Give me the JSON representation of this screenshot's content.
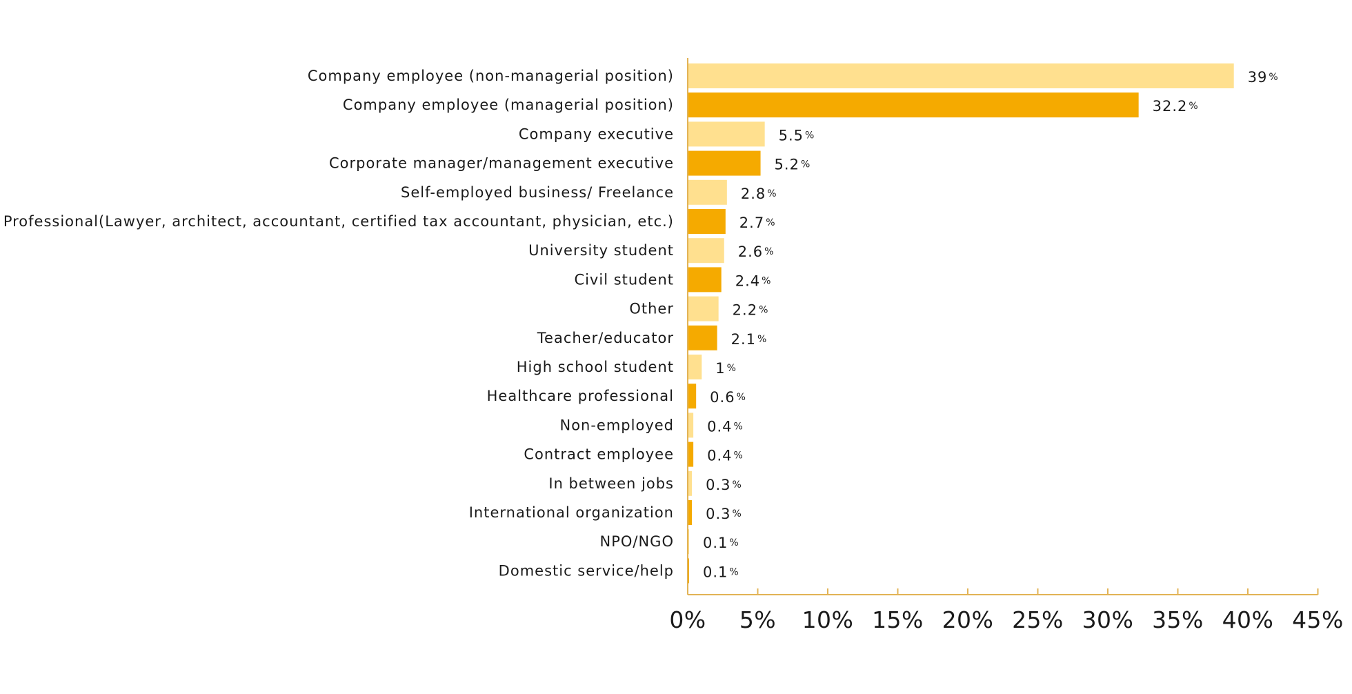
{
  "chart_data": {
    "type": "bar",
    "orientation": "horizontal",
    "title": "",
    "xlabel": "",
    "ylabel": "",
    "xlim": [
      0,
      45
    ],
    "grid": false,
    "legend": "none",
    "value_suffix": "%",
    "categories": [
      "Company employee (non-managerial position)",
      "Company employee (managerial position)",
      "Company executive",
      "Corporate manager/management executive",
      "Self-employed business/ Freelance",
      "Professional(Lawyer, architect, accountant, certified tax accountant, physician, etc.)",
      "University student",
      "Civil student",
      "Other",
      "Teacher/educator",
      "High school student",
      "Healthcare professional",
      "Non-employed",
      "Contract employee",
      "In between jobs",
      "International organization",
      "NPO/NGO",
      "Domestic service/help"
    ],
    "values": [
      39,
      32.2,
      5.5,
      5.2,
      2.8,
      2.7,
      2.6,
      2.4,
      2.2,
      2.1,
      1,
      0.6,
      0.4,
      0.4,
      0.3,
      0.3,
      0.1,
      0.1
    ],
    "value_labels": [
      "39",
      "32.2",
      "5.5",
      "5.2",
      "2.8",
      "2.7",
      "2.6",
      "2.4",
      "2.2",
      "2.1",
      "1",
      "0.6",
      "0.4",
      "0.4",
      "0.3",
      "0.3",
      "0.1",
      "0.1"
    ],
    "x_ticks": [
      0,
      5,
      10,
      15,
      20,
      25,
      30,
      35,
      40,
      45
    ],
    "x_tick_labels": [
      "0%",
      "5%",
      "10%",
      "15%",
      "20%",
      "25%",
      "30%",
      "35%",
      "40%",
      "45%"
    ],
    "colors": {
      "bar_light": "#ffe08f",
      "bar_dark": "#f5aa00",
      "axis": "#e2b356"
    }
  }
}
